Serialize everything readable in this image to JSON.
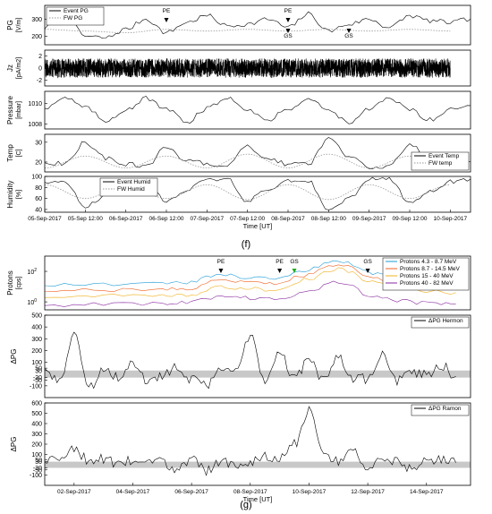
{
  "figure_labels": {
    "top": "(f)",
    "bottom": "(g)"
  },
  "colors": {
    "event": "#000000",
    "fw": "#9a9a9a",
    "band": "#c8c8c8",
    "protons_4_3": "#1f9bd6",
    "protons_8_7": "#f06020",
    "protons_15": "#f0b020",
    "protons_40": "#8a2aa0",
    "marker_green": "#22aa22"
  },
  "chart_data": [
    {
      "id": "f-pg",
      "type": "line",
      "ylabel": "PG [V/m]",
      "ylim": [
        150,
        380
      ],
      "yticks": [
        200,
        300
      ],
      "x_range": [
        "05-Sep-2017 00:00",
        "10-Sep-2017 06:00"
      ],
      "series": [
        {
          "name": "Event PG",
          "style": "solid",
          "x": [
            "05-Sep-2017 00:00",
            "05-Sep-2017 06:00",
            "05-Sep-2017 12:00",
            "05-Sep-2017 18:00",
            "06-Sep-2017 00:00",
            "06-Sep-2017 06:00",
            "06-Sep-2017 12:00",
            "06-Sep-2017 18:00",
            "07-Sep-2017 00:00",
            "07-Sep-2017 06:00",
            "07-Sep-2017 12:00",
            "07-Sep-2017 18:00",
            "08-Sep-2017 00:00",
            "08-Sep-2017 06:00",
            "08-Sep-2017 12:00",
            "08-Sep-2017 18:00",
            "09-Sep-2017 00:00",
            "09-Sep-2017 06:00",
            "09-Sep-2017 12:00",
            "09-Sep-2017 18:00",
            "10-Sep-2017 00:00",
            "10-Sep-2017 06:00"
          ],
          "values": [
            250,
            320,
            200,
            190,
            240,
            300,
            220,
            280,
            320,
            260,
            270,
            300,
            250,
            330,
            230,
            270,
            300,
            250,
            320,
            290,
            280,
            300
          ]
        },
        {
          "name": "FW PG",
          "style": "dotted",
          "x": [
            "05-Sep-2017 00:00",
            "05-Sep-2017 12:00",
            "06-Sep-2017 00:00",
            "06-Sep-2017 12:00",
            "07-Sep-2017 00:00",
            "07-Sep-2017 12:00",
            "08-Sep-2017 00:00",
            "08-Sep-2017 12:00",
            "09-Sep-2017 00:00",
            "09-Sep-2017 12:00",
            "10-Sep-2017 00:00"
          ],
          "values": [
            240,
            230,
            220,
            240,
            230,
            240,
            230,
            240,
            230,
            240,
            230
          ]
        }
      ],
      "annotations": [
        {
          "text": "PE",
          "x": "06-Sep-2017 12:00"
        },
        {
          "text": "PE",
          "x": "08-Sep-2017 00:00"
        },
        {
          "text": "GS",
          "x": "08-Sep-2017 00:00"
        },
        {
          "text": "GS",
          "x": "08-Sep-2017 18:00"
        }
      ],
      "legend": "top-left"
    },
    {
      "id": "f-jz",
      "type": "line",
      "ylabel": "Jz [pA/m2]",
      "ylim": [
        -3,
        3
      ],
      "yticks": [
        -2,
        0,
        2
      ],
      "series": [
        {
          "name": "",
          "style": "solid",
          "x": [
            "05-Sep-2017 00:00",
            "06-Sep-2017 00:00",
            "07-Sep-2017 00:00",
            "08-Sep-2017 00:00",
            "09-Sep-2017 00:00",
            "10-Sep-2017 00:00"
          ],
          "values": [
            0,
            0,
            0,
            0,
            0,
            0
          ]
        }
      ],
      "noise_amplitude": 1.6
    },
    {
      "id": "f-pressure",
      "type": "line",
      "ylabel": "Pressure [mbar]",
      "ylim": [
        1007.5,
        1011.2
      ],
      "yticks": [
        1008,
        1010
      ],
      "series": [
        {
          "name": "",
          "style": "solid",
          "x": [
            "05-Sep-2017 00:00",
            "05-Sep-2017 06:00",
            "05-Sep-2017 12:00",
            "05-Sep-2017 18:00",
            "06-Sep-2017 00:00",
            "06-Sep-2017 06:00",
            "06-Sep-2017 12:00",
            "06-Sep-2017 18:00",
            "07-Sep-2017 00:00",
            "07-Sep-2017 06:00",
            "07-Sep-2017 12:00",
            "07-Sep-2017 18:00",
            "08-Sep-2017 00:00",
            "08-Sep-2017 06:00",
            "08-Sep-2017 12:00",
            "08-Sep-2017 18:00",
            "09-Sep-2017 00:00",
            "09-Sep-2017 06:00",
            "09-Sep-2017 12:00",
            "09-Sep-2017 18:00",
            "10-Sep-2017 00:00",
            "10-Sep-2017 06:00"
          ],
          "values": [
            1009.6,
            1010.6,
            1009.6,
            1008.3,
            1009.4,
            1010.5,
            1009.4,
            1008.2,
            1009.5,
            1010.6,
            1009.5,
            1008.3,
            1009.5,
            1010.5,
            1009.3,
            1008.2,
            1009.4,
            1010.5,
            1009.4,
            1008.4,
            1009.5,
            1009.8
          ]
        }
      ]
    },
    {
      "id": "f-temp",
      "type": "line",
      "ylabel": "Temp [C]",
      "ylim": [
        15,
        34
      ],
      "yticks": [
        20,
        30
      ],
      "series": [
        {
          "name": "Event Temp",
          "style": "solid",
          "x": [
            "05-Sep-2017 00:00",
            "05-Sep-2017 06:00",
            "05-Sep-2017 12:00",
            "05-Sep-2017 18:00",
            "06-Sep-2017 00:00",
            "06-Sep-2017 06:00",
            "06-Sep-2017 12:00",
            "06-Sep-2017 18:00",
            "07-Sep-2017 00:00",
            "07-Sep-2017 06:00",
            "07-Sep-2017 12:00",
            "07-Sep-2017 18:00",
            "08-Sep-2017 00:00",
            "08-Sep-2017 06:00",
            "08-Sep-2017 12:00",
            "08-Sep-2017 18:00",
            "09-Sep-2017 00:00",
            "09-Sep-2017 06:00",
            "09-Sep-2017 12:00",
            "09-Sep-2017 18:00",
            "10-Sep-2017 00:00",
            "10-Sep-2017 06:00"
          ],
          "values": [
            20,
            19,
            30,
            22,
            19,
            18,
            27,
            21,
            19,
            18,
            28,
            22,
            19,
            19,
            32,
            23,
            17,
            18,
            29,
            22,
            19,
            20
          ]
        },
        {
          "name": "FW temp",
          "style": "dotted",
          "x": [
            "05-Sep-2017 00:00",
            "05-Sep-2017 12:00",
            "06-Sep-2017 00:00",
            "06-Sep-2017 12:00",
            "07-Sep-2017 00:00",
            "07-Sep-2017 12:00",
            "08-Sep-2017 00:00",
            "08-Sep-2017 12:00",
            "09-Sep-2017 00:00",
            "09-Sep-2017 12:00",
            "10-Sep-2017 00:00"
          ],
          "values": [
            17,
            23,
            17,
            23,
            17,
            24,
            17,
            24,
            17,
            23,
            17
          ]
        }
      ],
      "legend": "bottom-right"
    },
    {
      "id": "f-humid",
      "type": "line",
      "ylabel": "Humidity [%]",
      "ylim": [
        35,
        100
      ],
      "yticks": [
        40,
        60,
        80,
        100
      ],
      "series": [
        {
          "name": "Event Humid",
          "style": "solid",
          "x": [
            "05-Sep-2017 00:00",
            "05-Sep-2017 06:00",
            "05-Sep-2017 12:00",
            "05-Sep-2017 18:00",
            "06-Sep-2017 00:00",
            "06-Sep-2017 06:00",
            "06-Sep-2017 12:00",
            "06-Sep-2017 18:00",
            "07-Sep-2017 00:00",
            "07-Sep-2017 06:00",
            "07-Sep-2017 12:00",
            "07-Sep-2017 18:00",
            "08-Sep-2017 00:00",
            "08-Sep-2017 06:00",
            "08-Sep-2017 12:00",
            "08-Sep-2017 18:00",
            "09-Sep-2017 00:00",
            "09-Sep-2017 06:00",
            "09-Sep-2017 12:00",
            "09-Sep-2017 18:00",
            "10-Sep-2017 00:00",
            "10-Sep-2017 06:00"
          ],
          "values": [
            90,
            88,
            45,
            65,
            92,
            95,
            55,
            75,
            95,
            95,
            55,
            78,
            93,
            92,
            38,
            60,
            95,
            96,
            50,
            72,
            90,
            95
          ]
        },
        {
          "name": "FW Humid",
          "style": "dotted",
          "x": [
            "05-Sep-2017 00:00",
            "05-Sep-2017 12:00",
            "06-Sep-2017 00:00",
            "06-Sep-2017 12:00",
            "07-Sep-2017 00:00",
            "07-Sep-2017 12:00",
            "08-Sep-2017 00:00",
            "08-Sep-2017 12:00",
            "09-Sep-2017 00:00",
            "09-Sep-2017 12:00",
            "10-Sep-2017 00:00"
          ],
          "values": [
            85,
            60,
            85,
            60,
            85,
            58,
            85,
            58,
            85,
            60,
            85
          ]
        }
      ],
      "xticks": [
        "05-Sep-2017",
        "05-Sep 12:00",
        "06-Sep-2017",
        "06-Sep 12:00",
        "07-Sep-2017",
        "07-Sep 12:00",
        "08-Sep-2017",
        "08-Sep 12:00",
        "09-Sep-2017",
        "09-Sep 12:00",
        "10-Sep-2017"
      ],
      "xlabel": "Time [UT]",
      "legend": "top-left"
    },
    {
      "id": "g-protons",
      "type": "line",
      "ylabel": "Protons [cps]",
      "yscale": "log",
      "ylim": [
        0.3,
        1000
      ],
      "ytick_labels": [
        "10^0",
        "10^2"
      ],
      "x_range": [
        "01-Sep-2017 00:00",
        "15-Sep-2017 12:00"
      ],
      "series": [
        {
          "name": "Protons 4.3 - 8.7 MeV",
          "x": [
            "01-Sep-2017",
            "03-Sep-2017",
            "05-Sep-2017",
            "06-Sep-2017",
            "07-Sep-2017",
            "08-Sep-2017",
            "09-Sep-2017",
            "10-Sep-2017",
            "11-Sep-2017",
            "12-Sep-2017",
            "13-Sep-2017",
            "14-Sep-2017",
            "15-Sep-2017"
          ],
          "values": [
            12,
            14,
            15,
            20,
            60,
            40,
            30,
            120,
            500,
            80,
            40,
            25,
            20
          ]
        },
        {
          "name": "Protons 8.7 - 14.5 MeV",
          "x": [
            "01-Sep-2017",
            "03-Sep-2017",
            "05-Sep-2017",
            "06-Sep-2017",
            "07-Sep-2017",
            "08-Sep-2017",
            "09-Sep-2017",
            "10-Sep-2017",
            "11-Sep-2017",
            "12-Sep-2017",
            "13-Sep-2017",
            "14-Sep-2017",
            "15-Sep-2017"
          ],
          "values": [
            5,
            6,
            6,
            8,
            25,
            18,
            14,
            60,
            250,
            40,
            18,
            10,
            8
          ]
        },
        {
          "name": "Protons 15 - 40 MeV",
          "x": [
            "01-Sep-2017",
            "03-Sep-2017",
            "05-Sep-2017",
            "06-Sep-2017",
            "07-Sep-2017",
            "08-Sep-2017",
            "09-Sep-2017",
            "10-Sep-2017",
            "11-Sep-2017",
            "12-Sep-2017",
            "13-Sep-2017",
            "14-Sep-2017",
            "15-Sep-2017"
          ],
          "values": [
            2,
            2.5,
            2.5,
            3,
            10,
            7,
            6,
            30,
            140,
            20,
            8,
            5,
            4
          ]
        },
        {
          "name": "Protons 40 - 82 MeV",
          "x": [
            "01-Sep-2017",
            "03-Sep-2017",
            "05-Sep-2017",
            "06-Sep-2017",
            "07-Sep-2017",
            "08-Sep-2017",
            "09-Sep-2017",
            "10-Sep-2017",
            "11-Sep-2017",
            "12-Sep-2017",
            "13-Sep-2017",
            "14-Sep-2017",
            "15-Sep-2017"
          ],
          "values": [
            0.6,
            0.7,
            0.7,
            1,
            2,
            1.8,
            1.6,
            4,
            20,
            2.5,
            1.2,
            0.8,
            0.7
          ]
        }
      ],
      "annotations": [
        {
          "text": "PE",
          "x": "07-Sep-2017"
        },
        {
          "text": "PE",
          "x": "09-Sep-2017"
        },
        {
          "text": "GS",
          "x": "09-Sep-2017 12:00"
        },
        {
          "text": "GS",
          "x": "12-Sep-2017"
        }
      ],
      "legend": "right"
    },
    {
      "id": "g-hermon",
      "type": "line",
      "ylabel": "ΔPG",
      "ylim": [
        -200,
        500
      ],
      "ytick_labels": [
        "-100",
        "-50",
        "-30",
        "30",
        "50",
        "100",
        "200",
        "300",
        "400",
        "500"
      ],
      "band": [
        -30,
        30
      ],
      "series": [
        {
          "name": "ΔPG Hermon",
          "x": [
            "01-Sep-2017",
            "01-Sep-2017 12:00",
            "02-Sep-2017",
            "02-Sep-2017 12:00",
            "03-Sep-2017",
            "03-Sep-2017 12:00",
            "04-Sep-2017",
            "04-Sep-2017 12:00",
            "05-Sep-2017",
            "05-Sep-2017 12:00",
            "06-Sep-2017",
            "06-Sep-2017 12:00",
            "07-Sep-2017",
            "07-Sep-2017 12:00",
            "08-Sep-2017",
            "08-Sep-2017 12:00",
            "09-Sep-2017",
            "09-Sep-2017 12:00",
            "10-Sep-2017",
            "10-Sep-2017 12:00",
            "11-Sep-2017",
            "11-Sep-2017 12:00",
            "12-Sep-2017",
            "12-Sep-2017 12:00",
            "13-Sep-2017",
            "13-Sep-2017 12:00",
            "14-Sep-2017",
            "14-Sep-2017 12:00",
            "15-Sep-2017"
          ],
          "values": [
            50,
            -80,
            350,
            -120,
            40,
            -20,
            100,
            -60,
            -10,
            60,
            -50,
            -90,
            60,
            30,
            320,
            -80,
            200,
            -40,
            120,
            -50,
            150,
            -30,
            -40,
            180,
            -60,
            20,
            -10,
            80,
            -20
          ]
        }
      ],
      "legend": "top-right"
    },
    {
      "id": "g-ramon",
      "type": "line",
      "ylabel": "ΔPG",
      "ylim": [
        -200,
        600
      ],
      "ytick_labels": [
        "-100",
        "-50",
        "-30",
        "30",
        "50",
        "100",
        "200",
        "300",
        "400",
        "500",
        "600"
      ],
      "band": [
        -30,
        30
      ],
      "series": [
        {
          "name": "ΔPG Ramon",
          "x": [
            "01-Sep-2017",
            "01-Sep-2017 12:00",
            "02-Sep-2017",
            "02-Sep-2017 12:00",
            "03-Sep-2017",
            "03-Sep-2017 12:00",
            "04-Sep-2017",
            "04-Sep-2017 12:00",
            "05-Sep-2017",
            "05-Sep-2017 12:00",
            "06-Sep-2017",
            "06-Sep-2017 12:00",
            "07-Sep-2017",
            "07-Sep-2017 12:00",
            "08-Sep-2017",
            "08-Sep-2017 12:00",
            "09-Sep-2017",
            "09-Sep-2017 12:00",
            "10-Sep-2017",
            "10-Sep-2017 12:00",
            "11-Sep-2017",
            "11-Sep-2017 12:00",
            "12-Sep-2017",
            "12-Sep-2017 12:00",
            "13-Sep-2017",
            "13-Sep-2017 12:00",
            "14-Sep-2017",
            "14-Sep-2017 12:00",
            "15-Sep-2017"
          ],
          "values": [
            20,
            80,
            150,
            40,
            60,
            10,
            50,
            70,
            20,
            -40,
            60,
            -60,
            40,
            -20,
            30,
            90,
            60,
            200,
            520,
            80,
            40,
            120,
            -30,
            60,
            30,
            -50,
            40,
            60,
            20
          ]
        }
      ],
      "xticks": [
        "02-Sep-2017",
        "04-Sep-2017",
        "06-Sep-2017",
        "08-Sep-2017",
        "10-Sep-2017",
        "12-Sep-2017",
        "14-Sep-2017"
      ],
      "xlabel": "Time [UT]",
      "legend": "top-right"
    }
  ]
}
